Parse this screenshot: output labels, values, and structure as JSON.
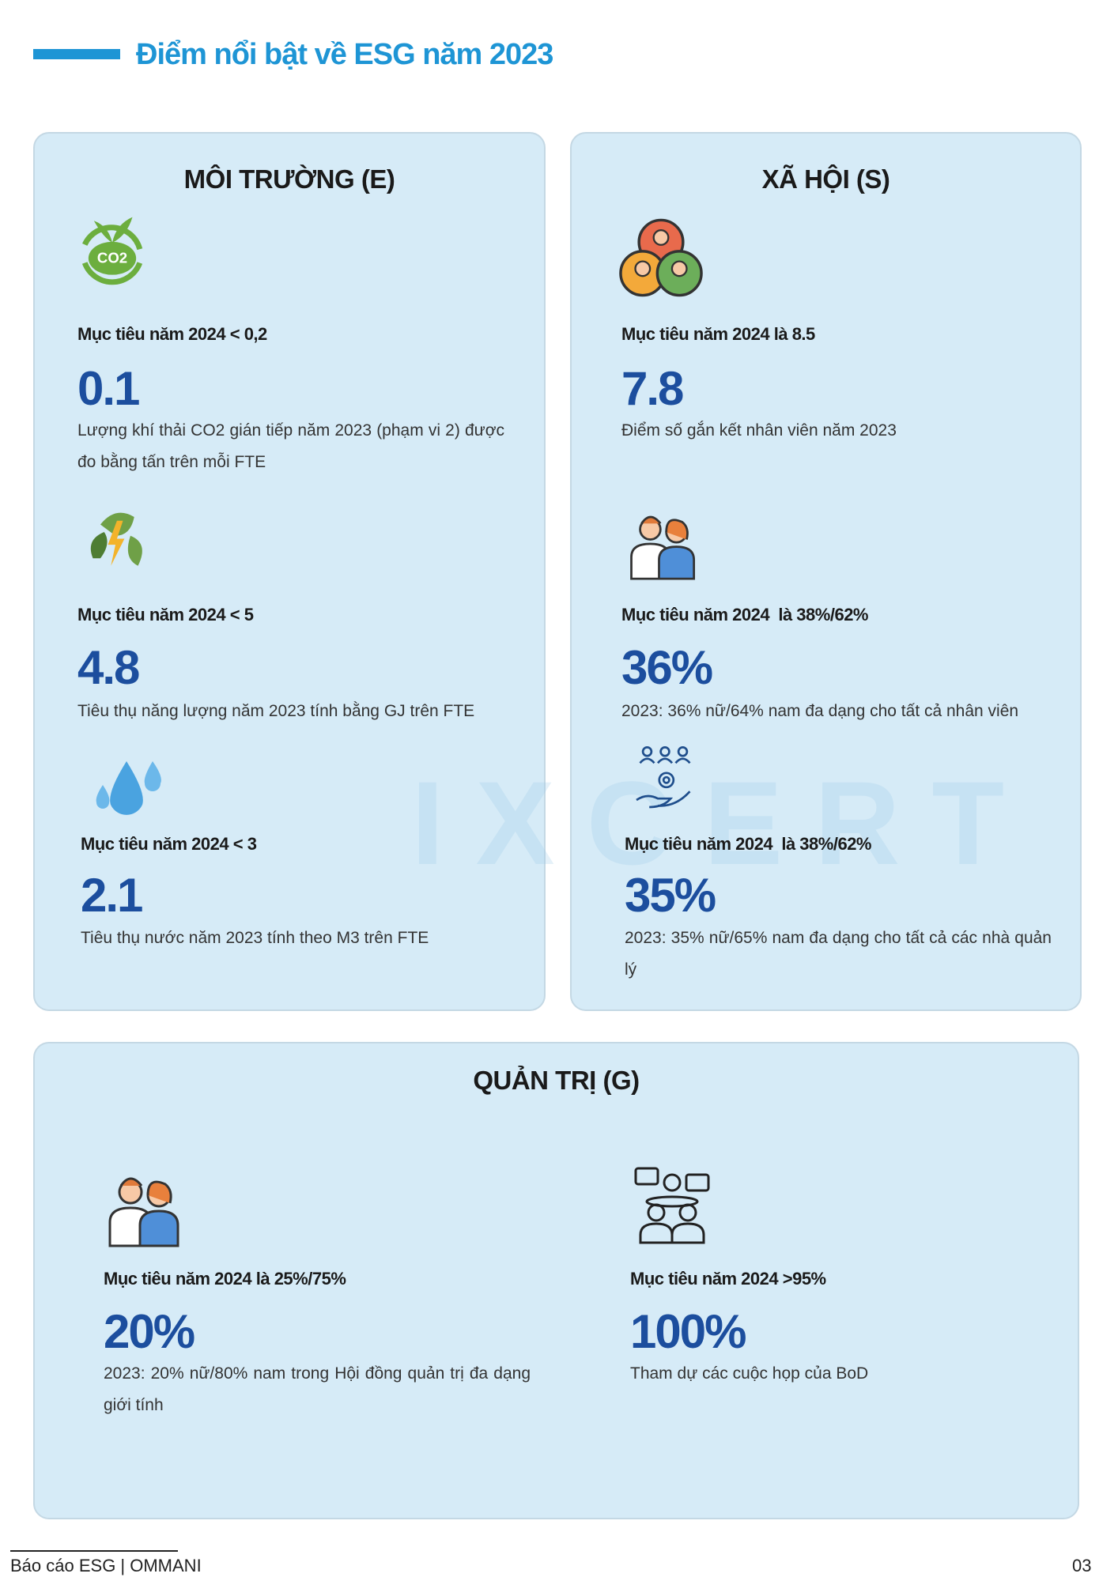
{
  "header": {
    "title": "Điểm nổi bật về ESG năm 2023"
  },
  "sections": [
    {
      "title": "MÔI TRƯỜNG (E)",
      "items": [
        {
          "icon_text": "CO2",
          "target": "Mục tiêu năm 2024 < 0,2",
          "value": "0.1",
          "description": "Lượng khí thải CO2 gián tiếp năm 2023 (phạm vi 2) được đo bằng tấn trên mỗi FTE"
        },
        {
          "target": "Mục tiêu năm 2024 < 5",
          "value": "4.8",
          "description": "Tiêu thụ năng lượng năm 2023 tính bằng GJ trên FTE"
        },
        {
          "target": "Mục tiêu năm 2024 < 3",
          "value": "2.1",
          "description": "Tiêu thụ nước năm 2023 tính theo M3 trên FTE"
        }
      ]
    },
    {
      "title": "XÃ HỘI (S)",
      "items": [
        {
          "target": "Mục tiêu năm 2024 là 8.5",
          "value": "7.8",
          "description": "Điểm số gắn kết nhân viên năm 2023"
        },
        {
          "target": "Mục tiêu năm 2024  là 38%/62%",
          "value": "36%",
          "description": "2023: 36% nữ/64% nam đa dạng cho tất cả nhân viên"
        },
        {
          "target": "Mục tiêu năm 2024  là 38%/62%",
          "value": "35%",
          "description": "2023: 35% nữ/65% nam đa dạng cho tất cả các nhà quản lý"
        }
      ]
    },
    {
      "title": "QUẢN TRỊ (G)",
      "items": [
        {
          "target": "Mục tiêu năm 2024 là 25%/75%",
          "value": "20%",
          "description": "2023: 20% nữ/80% nam trong Hội đồng quản trị đa dạng giới tính"
        },
        {
          "target": "Mục tiêu năm 2024 >95%",
          "value": "100%",
          "description": "Tham dự các cuộc họp của BoD"
        }
      ]
    }
  ],
  "watermark": "IXCERT",
  "footer": {
    "left": "Báo cáo ESG | OMMANI",
    "page": "03"
  }
}
